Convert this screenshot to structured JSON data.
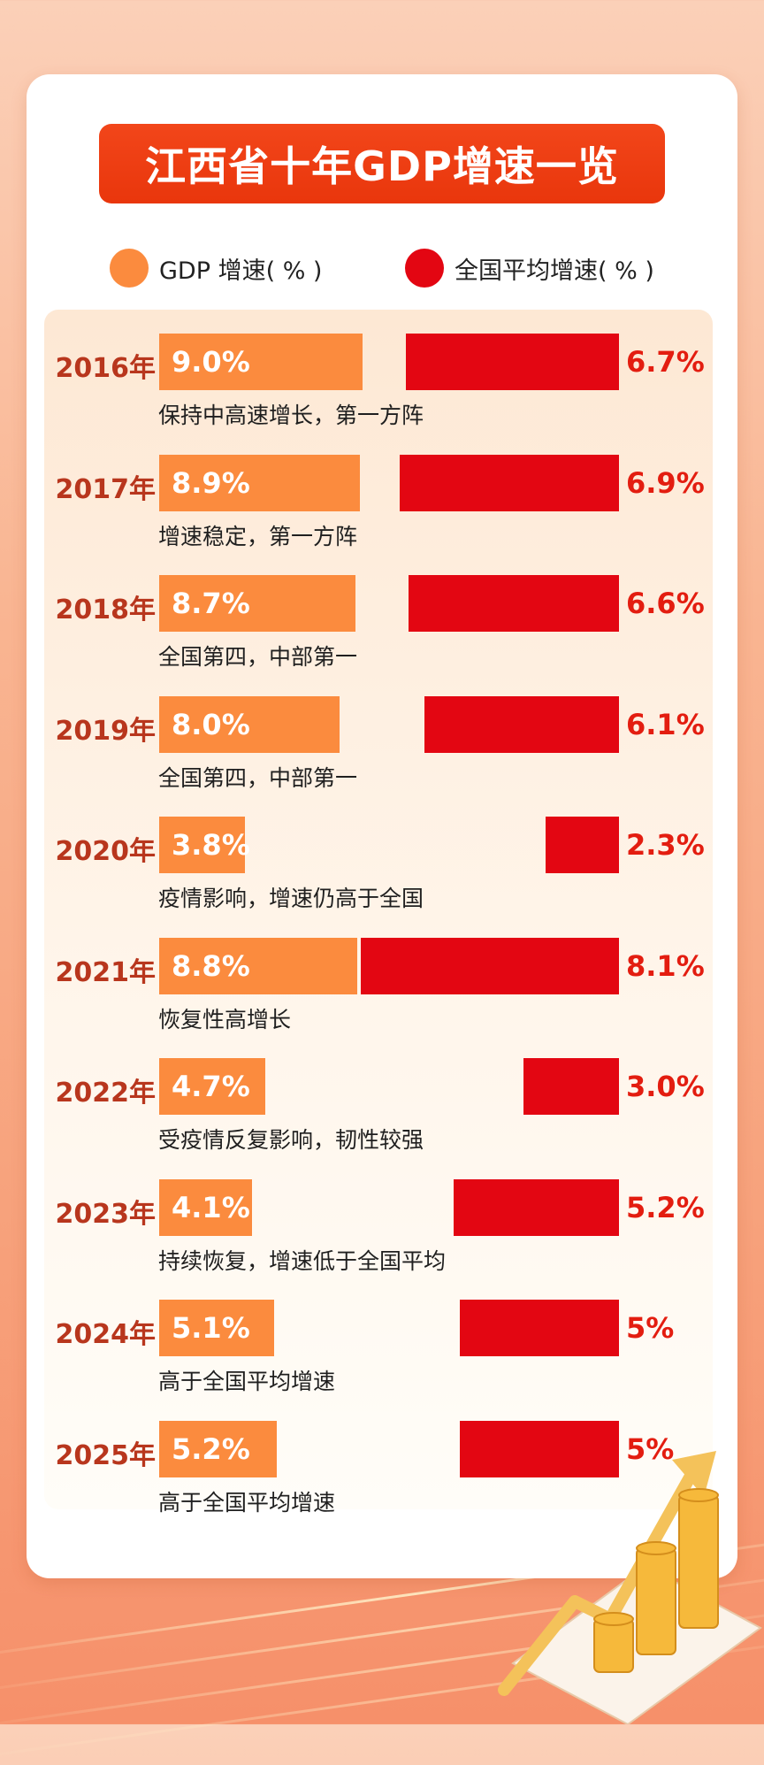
{
  "title": "江西省十年GDP增速一览",
  "legend": [
    {
      "label": "GDP 增速( % )",
      "color": "#fb8b3e"
    },
    {
      "label": "全国平均增速( % )",
      "color": "#e30612"
    }
  ],
  "chart_data": {
    "type": "bar",
    "title": "江西省十年GDP增速一览",
    "unit": "%",
    "categories": [
      "2016年",
      "2017年",
      "2018年",
      "2019年",
      "2020年",
      "2021年",
      "2022年",
      "2023年",
      "2024年",
      "2025年"
    ],
    "series": [
      {
        "name": "GDP 增速( % )",
        "color": "#fb8b3e",
        "values": [
          9.0,
          8.9,
          8.7,
          8.0,
          3.8,
          8.8,
          4.7,
          4.1,
          5.1,
          5.2
        ],
        "labels": [
          "9.0%",
          "8.9%",
          "8.7%",
          "8.0%",
          "3.8%",
          "8.8%",
          "4.7%",
          "4.1%",
          "5.1%",
          "5.2%"
        ]
      },
      {
        "name": "全国平均增速( % )",
        "color": "#e30612",
        "values": [
          6.7,
          6.9,
          6.6,
          6.1,
          2.3,
          8.1,
          3.0,
          5.2,
          5,
          5
        ],
        "labels": [
          "6.7%",
          "6.9%",
          "6.6%",
          "6.1%",
          "2.3%",
          "8.1%",
          "3.0%",
          "5.2%",
          "5%",
          "5%"
        ]
      }
    ],
    "notes": [
      "保持中高速增长，第一方阵",
      "增速稳定，第一方阵",
      "全国第四，中部第一",
      "全国第四，中部第一",
      "疫情影响，增速仍高于全国",
      "恢复性高增长",
      "受疫情反复影响，韧性较强",
      "持续恢复，增速低于全国平均",
      "高于全国平均增速",
      "高于全国平均增速"
    ]
  }
}
